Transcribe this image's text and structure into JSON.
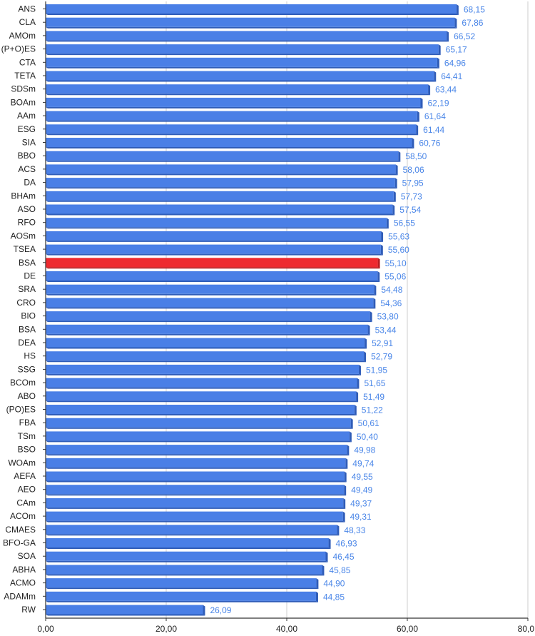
{
  "chart_data": {
    "type": "bar",
    "orientation": "horizontal",
    "categories": [
      "ANS",
      "CLA",
      "AMOm",
      "(P+O)ES",
      "CTA",
      "TETA",
      "SDSm",
      "BOAm",
      "AAm",
      "ESG",
      "SIA",
      "BBO",
      "ACS",
      "DA",
      "BHAm",
      "ASO",
      "RFO",
      "AOSm",
      "TSEA",
      "BSA",
      "DE",
      "SRA",
      "CRO",
      "BIO",
      "BSA",
      "DEA",
      "HS",
      "SSG",
      "BCOm",
      "ABO",
      "(PO)ES",
      "FBA",
      "TSm",
      "BSO",
      "WOAm",
      "AEFA",
      "AEO",
      "CAm",
      "ACOm",
      "CMAES",
      "BFO-GA",
      "SOA",
      "ABHA",
      "ACMO",
      "ADAMm",
      "RW"
    ],
    "values": [
      68.15,
      67.86,
      66.52,
      65.17,
      64.96,
      64.41,
      63.44,
      62.19,
      61.64,
      61.44,
      60.76,
      58.5,
      58.06,
      57.95,
      57.73,
      57.54,
      56.55,
      55.63,
      55.6,
      55.1,
      55.06,
      54.48,
      54.36,
      53.8,
      53.44,
      52.91,
      52.79,
      51.95,
      51.65,
      51.49,
      51.22,
      50.61,
      50.4,
      49.98,
      49.74,
      49.55,
      49.49,
      49.37,
      49.31,
      48.33,
      46.93,
      46.45,
      45.85,
      44.9,
      44.85,
      26.09
    ],
    "value_labels": [
      "68,15",
      "67,86",
      "66,52",
      "65,17",
      "64,96",
      "64,41",
      "63,44",
      "62,19",
      "61,64",
      "61,44",
      "60,76",
      "58,50",
      "58,06",
      "57,95",
      "57,73",
      "57,54",
      "56,55",
      "55,63",
      "55,60",
      "55,10",
      "55,06",
      "54,48",
      "54,36",
      "53,80",
      "53,44",
      "52,91",
      "52,79",
      "51,95",
      "51,65",
      "51,49",
      "51,22",
      "50,61",
      "50,40",
      "49,98",
      "49,74",
      "49,55",
      "49,49",
      "49,37",
      "49,31",
      "48,33",
      "46,93",
      "46,45",
      "45,85",
      "44,90",
      "44,85",
      "26,09"
    ],
    "highlight_index": 19,
    "xlim": [
      0,
      80
    ],
    "x_ticks": [
      0,
      20,
      40,
      60,
      80
    ],
    "x_tick_labels": [
      "0,00",
      "20,00",
      "40,00",
      "60,00",
      "80,0"
    ],
    "grid": true,
    "title": "",
    "xlabel": "",
    "ylabel": "",
    "colors": {
      "bar": "#4a7fe6",
      "bar_shade": "#2f5cb8",
      "highlight": "#ee2a2f",
      "highlight_shade": "#b81c20",
      "value_label": "#4a86e8",
      "grid": "#cccccc",
      "axis": "#333333"
    }
  }
}
